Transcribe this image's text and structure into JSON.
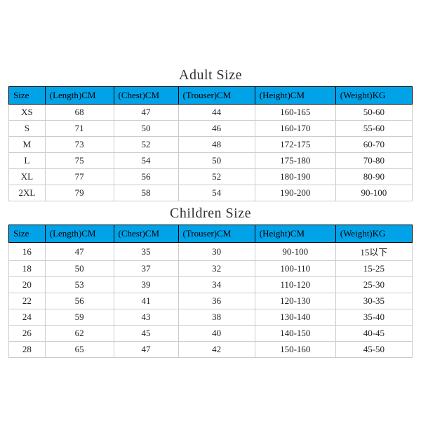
{
  "adult": {
    "title": "Adult Size",
    "columns": [
      "Size",
      "(Length)CM",
      "(Chest)CM",
      "(Trouser)CM",
      "(Height)CM",
      "(Weight)KG"
    ],
    "rows": [
      [
        "XS",
        "68",
        "47",
        "44",
        "160-165",
        "50-60"
      ],
      [
        "S",
        "71",
        "50",
        "46",
        "160-170",
        "55-60"
      ],
      [
        "M",
        "73",
        "52",
        "48",
        "172-175",
        "60-70"
      ],
      [
        "L",
        "75",
        "54",
        "50",
        "175-180",
        "70-80"
      ],
      [
        "XL",
        "77",
        "56",
        "52",
        "180-190",
        "80-90"
      ],
      [
        "2XL",
        "79",
        "58",
        "54",
        "190-200",
        "90-100"
      ]
    ]
  },
  "children": {
    "title": "Children Size",
    "columns": [
      "Size",
      "(Length)CM",
      "(Chest)CM",
      "(Trouser)CM",
      "(Height)CM",
      "(Weight)KG"
    ],
    "rows": [
      [
        "16",
        "47",
        "35",
        "30",
        "90-100",
        "15以下"
      ],
      [
        "18",
        "50",
        "37",
        "32",
        "100-110",
        "15-25"
      ],
      [
        "20",
        "53",
        "39",
        "34",
        "110-120",
        "25-30"
      ],
      [
        "22",
        "56",
        "41",
        "36",
        "120-130",
        "30-35"
      ],
      [
        "24",
        "59",
        "43",
        "38",
        "130-140",
        "35-40"
      ],
      [
        "26",
        "62",
        "45",
        "40",
        "140-150",
        "40-45"
      ],
      [
        "28",
        "65",
        "47",
        "42",
        "150-160",
        "45-50"
      ]
    ]
  },
  "style": {
    "header_bg": "#00a2e8",
    "header_border": "#000000",
    "cell_border": "#cccccc",
    "title_fontsize": 20,
    "cell_fontsize": 13,
    "col_widths_pct": [
      9,
      17,
      16,
      19,
      20,
      19
    ]
  }
}
